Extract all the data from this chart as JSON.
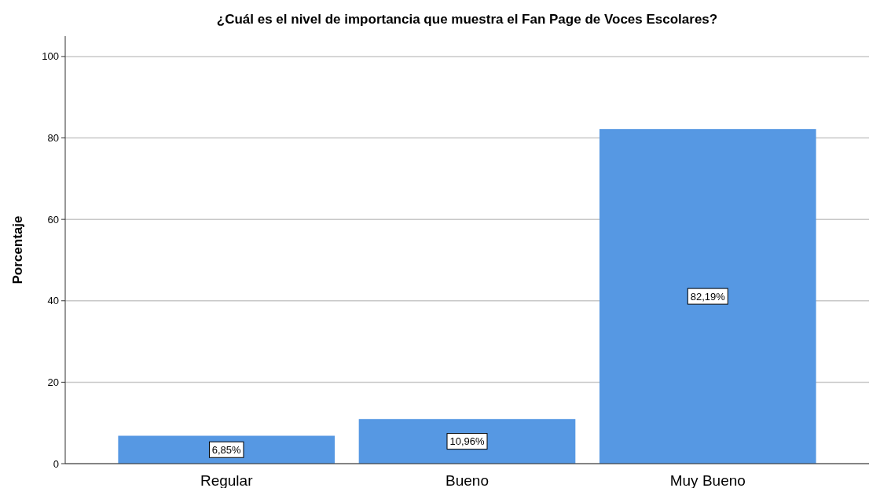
{
  "chart_data": {
    "type": "bar",
    "title": "¿Cuál es el nivel de importancia que muestra el Fan Page de Voces Escolares?",
    "ylabel": "Porcentaje",
    "categories": [
      "Regular",
      "Bueno",
      "Muy Bueno"
    ],
    "values": [
      6.85,
      10.96,
      82.19
    ],
    "value_labels": [
      "6,85%",
      "10,96%",
      "82,19%"
    ],
    "color": "#5698e3",
    "ylim": [
      0,
      105
    ],
    "yticks": [
      0,
      20,
      40,
      60,
      80,
      100
    ],
    "grid": "y"
  }
}
